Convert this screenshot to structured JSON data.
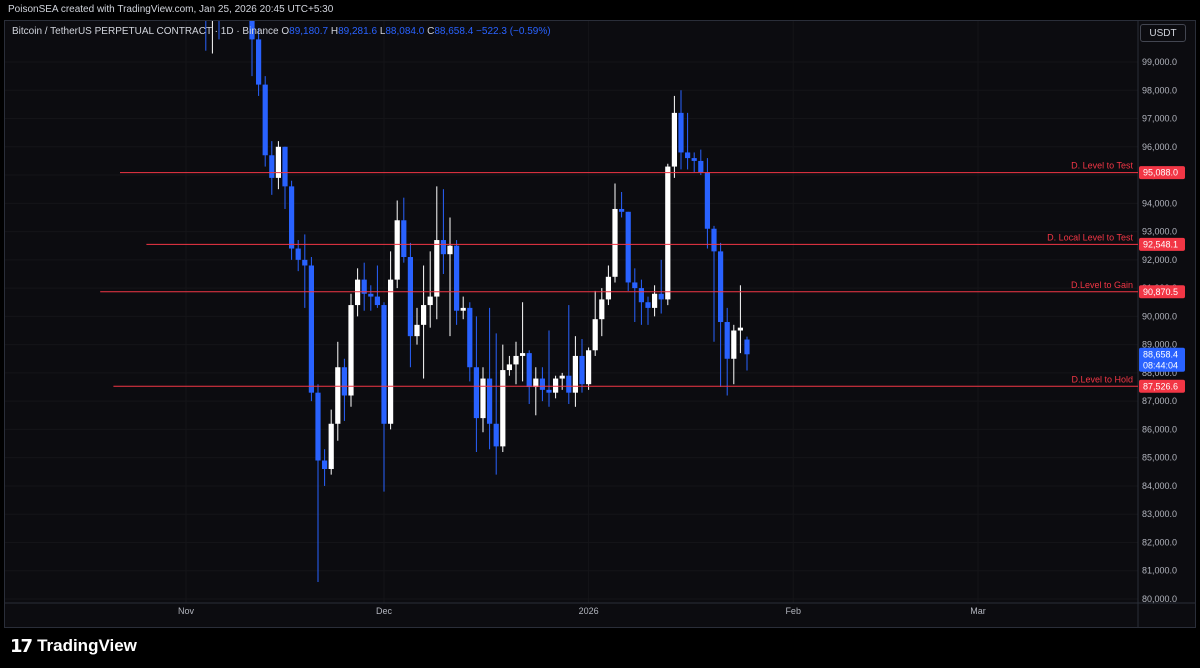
{
  "header": {
    "author_line": "PoisonSEA created with TradingView.com, Jan 25, 2026 20:45 UTC+5:30",
    "symbol": "Bitcoin / TetherUS PERPETUAL CONTRACT · 1D · Binance",
    "open_label": "O",
    "open_value": "89,180.7",
    "high_label": "H",
    "high_value": "89,281.6",
    "low_label": "L",
    "low_value": "88,084.0",
    "close_label": "C",
    "close_value": "88,658.4",
    "change": "−522.3 (−0.59%)",
    "currency_button": "USDT"
  },
  "footer": {
    "brand": "TradingView"
  },
  "colors": {
    "up": "#ffffff",
    "down": "#2962ff",
    "level_line": "#f23645",
    "grid": "#141418",
    "axis_text": "#b2b5be",
    "background": "#0c0c10"
  },
  "chart_data": {
    "type": "candlestick",
    "symbol": "Bitcoin / TetherUS PERPETUAL CONTRACT",
    "interval": "1D",
    "exchange": "Binance",
    "y_axis_ticks": [
      80000,
      81000,
      82000,
      83000,
      84000,
      85000,
      86000,
      87000,
      88000,
      89000,
      90000,
      91000,
      92000,
      93000,
      94000,
      95000,
      96000,
      97000,
      98000,
      99000
    ],
    "y_tick_labels": [
      "80,000.0",
      "81,000.0",
      "82,000.0",
      "83,000.0",
      "84,000.0",
      "85,000.0",
      "86,000.0",
      "87,000.0",
      "88,000.0",
      "89,000.0",
      "90,000.0",
      "91,000.0",
      "92,000.0",
      "93,000.0",
      "94,000.0",
      "95,000.0",
      "96,000.0",
      "97,000.0",
      "98,000.0",
      "99,000.0"
    ],
    "x_axis_labels": [
      {
        "label": "Nov",
        "date": "2025-11-01"
      },
      {
        "label": "Dec",
        "date": "2025-12-01"
      },
      {
        "label": "2026",
        "date": "2026-01-01"
      },
      {
        "label": "Feb",
        "date": "2026-02-01"
      },
      {
        "label": "Mar",
        "date": "2026-03-01"
      }
    ],
    "levels": [
      {
        "name": "D. Level to Test",
        "price": 95088.0,
        "label": "95,088.0",
        "start_date": "2025-10-22"
      },
      {
        "name": "D. Local Level to Test",
        "price": 92548.1,
        "label": "92,548.1",
        "start_date": "2025-10-26"
      },
      {
        "name": "D.Level to Gain",
        "price": 90870.5,
        "label": "90,870.5",
        "start_date": "2025-10-19"
      },
      {
        "name": "D.Level to Hold",
        "price": 87526.6,
        "label": "87,526.6",
        "start_date": "2025-10-21"
      }
    ],
    "last_price": {
      "value": "88,658.4",
      "countdown": "08:44:04"
    },
    "candles": [
      [
        "2025-11-04",
        102000,
        102000,
        99400,
        101500
      ],
      [
        "2025-11-05",
        101500,
        102000,
        99300,
        101800
      ],
      [
        "2025-11-06",
        101800,
        102000,
        99800,
        101600
      ],
      [
        "2025-11-11",
        102000,
        102000,
        98500,
        99800
      ],
      [
        "2025-11-12",
        99800,
        100200,
        97800,
        98200
      ],
      [
        "2025-11-13",
        98200,
        98500,
        95300,
        95700
      ],
      [
        "2025-11-14",
        95700,
        96200,
        94300,
        94900
      ],
      [
        "2025-11-15",
        94900,
        96200,
        94500,
        96000
      ],
      [
        "2025-11-16",
        96000,
        96000,
        93800,
        94600
      ],
      [
        "2025-11-17",
        94600,
        94800,
        92000,
        92400
      ],
      [
        "2025-11-18",
        92400,
        92700,
        91600,
        92000
      ],
      [
        "2025-11-19",
        92000,
        92900,
        90300,
        91800
      ],
      [
        "2025-11-20",
        91800,
        92100,
        87000,
        87300
      ],
      [
        "2025-11-21",
        87300,
        87600,
        80600,
        84900
      ],
      [
        "2025-11-22",
        84900,
        85300,
        84000,
        84600
      ],
      [
        "2025-11-23",
        84600,
        86700,
        84400,
        86200
      ],
      [
        "2025-11-24",
        86200,
        89100,
        85600,
        88200
      ],
      [
        "2025-11-25",
        88200,
        88500,
        86300,
        87200
      ],
      [
        "2025-11-26",
        87200,
        90800,
        86800,
        90400
      ],
      [
        "2025-11-27",
        90400,
        91700,
        90000,
        91300
      ],
      [
        "2025-11-28",
        91300,
        91900,
        90200,
        90800
      ],
      [
        "2025-11-29",
        90800,
        91100,
        90200,
        90700
      ],
      [
        "2025-11-30",
        90700,
        91800,
        90300,
        90400
      ],
      [
        "2025-12-01",
        90400,
        90500,
        83800,
        86200
      ],
      [
        "2025-12-02",
        86200,
        92300,
        86000,
        91300
      ],
      [
        "2025-12-03",
        91300,
        94100,
        91000,
        93400
      ],
      [
        "2025-12-04",
        93400,
        94200,
        91900,
        92100
      ],
      [
        "2025-12-05",
        92100,
        92600,
        88200,
        89300
      ],
      [
        "2025-12-06",
        89300,
        90300,
        89000,
        89700
      ],
      [
        "2025-12-07",
        89700,
        91800,
        87800,
        90400
      ],
      [
        "2025-12-08",
        90400,
        92300,
        89600,
        90700
      ],
      [
        "2025-12-09",
        90700,
        94600,
        89900,
        92700
      ],
      [
        "2025-12-10",
        92700,
        94500,
        91500,
        92200
      ],
      [
        "2025-12-11",
        92200,
        93500,
        89300,
        92500
      ],
      [
        "2025-12-12",
        92500,
        92700,
        89700,
        90200
      ],
      [
        "2025-12-13",
        90200,
        90700,
        89900,
        90300
      ],
      [
        "2025-12-14",
        90300,
        90500,
        87700,
        88200
      ],
      [
        "2025-12-15",
        88200,
        90000,
        85200,
        86400
      ],
      [
        "2025-12-16",
        86400,
        88200,
        85900,
        87800
      ],
      [
        "2025-12-17",
        87800,
        90300,
        85300,
        86200
      ],
      [
        "2025-12-18",
        86200,
        89400,
        84400,
        85400
      ],
      [
        "2025-12-19",
        85400,
        89000,
        85200,
        88100
      ],
      [
        "2025-12-20",
        88100,
        88600,
        87900,
        88300
      ],
      [
        "2025-12-21",
        88300,
        89100,
        87600,
        88600
      ],
      [
        "2025-12-22",
        88600,
        90500,
        87700,
        88700
      ],
      [
        "2025-12-23",
        88700,
        88800,
        86900,
        87500
      ],
      [
        "2025-12-24",
        87500,
        88200,
        86500,
        87800
      ],
      [
        "2025-12-25",
        87800,
        88200,
        87000,
        87400
      ],
      [
        "2025-12-26",
        87400,
        89500,
        86800,
        87300
      ],
      [
        "2025-12-27",
        87300,
        87900,
        87100,
        87800
      ],
      [
        "2025-12-28",
        87800,
        88000,
        87400,
        87900
      ],
      [
        "2025-12-29",
        87900,
        90400,
        86900,
        87300
      ],
      [
        "2025-12-30",
        87300,
        89300,
        86800,
        88600
      ],
      [
        "2025-12-31",
        88600,
        89200,
        87300,
        87600
      ],
      [
        "2026-01-01",
        87600,
        88900,
        87400,
        88800
      ],
      [
        "2026-01-02",
        88800,
        90900,
        88600,
        89900
      ],
      [
        "2026-01-03",
        89900,
        91000,
        89300,
        90600
      ],
      [
        "2026-01-04",
        90600,
        91800,
        90400,
        91400
      ],
      [
        "2026-01-05",
        91400,
        94700,
        91200,
        93800
      ],
      [
        "2026-01-06",
        93800,
        94400,
        93500,
        93700
      ],
      [
        "2026-01-07",
        93700,
        93700,
        90900,
        91200
      ],
      [
        "2026-01-08",
        91200,
        91700,
        89800,
        91000
      ],
      [
        "2026-01-09",
        91000,
        91300,
        89700,
        90500
      ],
      [
        "2026-01-10",
        90500,
        90700,
        89700,
        90300
      ],
      [
        "2026-01-11",
        90300,
        91100,
        90000,
        90800
      ],
      [
        "2026-01-12",
        90800,
        92000,
        90100,
        90600
      ],
      [
        "2026-01-13",
        90600,
        95400,
        90400,
        95300
      ],
      [
        "2026-01-14",
        95300,
        97800,
        94900,
        97200
      ],
      [
        "2026-01-15",
        97200,
        98000,
        95200,
        95800
      ],
      [
        "2026-01-16",
        95800,
        97200,
        95200,
        95600
      ],
      [
        "2026-01-17",
        95600,
        95800,
        95100,
        95500
      ],
      [
        "2026-01-18",
        95500,
        95900,
        95000,
        95100
      ],
      [
        "2026-01-19",
        95100,
        95600,
        92400,
        93100
      ],
      [
        "2026-01-20",
        93100,
        93200,
        89100,
        92300
      ],
      [
        "2026-01-21",
        92300,
        92600,
        87500,
        89800
      ],
      [
        "2026-01-22",
        89800,
        90300,
        87200,
        88500
      ],
      [
        "2026-01-23",
        88500,
        89700,
        87600,
        89500
      ],
      [
        "2026-01-24",
        89500,
        91100,
        88700,
        89600
      ],
      [
        "2026-01-25",
        89180.7,
        89281.6,
        88084.0,
        88658.4
      ]
    ]
  }
}
